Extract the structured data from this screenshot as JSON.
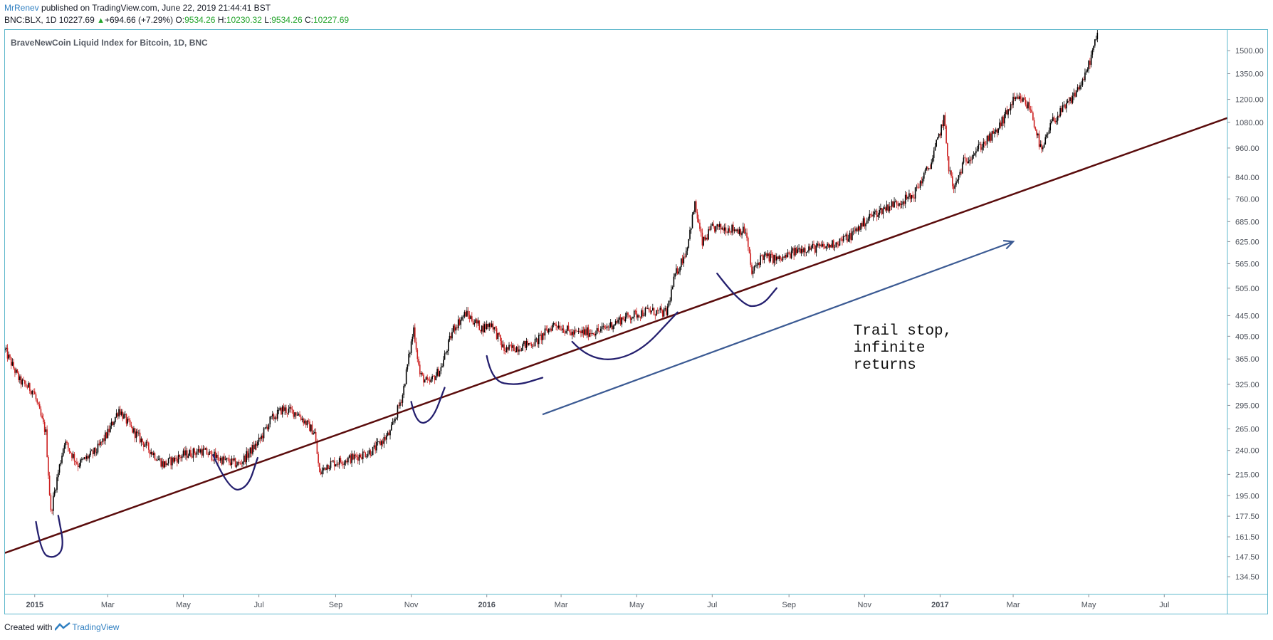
{
  "header": {
    "author": "MrRenev",
    "published_text": " published on TradingView.com, June 22, 2019 21:44:41 BST",
    "symbol": "BNC:BLX, 1D",
    "last_price": "10227.69",
    "change": "+694.66 (+7.29%)",
    "open_label": "O:",
    "open": "9534.26",
    "high_label": "H:",
    "high": "10230.32",
    "low_label": "L:",
    "low": "9534.26",
    "close_label": "C:",
    "close": "10227.69"
  },
  "footer": {
    "created_with": "Created with",
    "brand": "TradingView"
  },
  "colors": {
    "up_candle": "#000000",
    "down_candle": "#cc1f1f",
    "trendline": "#5a0c0c",
    "arrow": "#3b5a93",
    "hand_drawn": "#241f6e",
    "frame": "#5fb8cc"
  },
  "chart_data": {
    "type": "candlestick",
    "title": "BraveNewCoin Liquid Index for Bitcoin, 1D, BNC",
    "y_scale": "log",
    "ylim": [
      124,
      1650
    ],
    "y_ticks": [
      "134.50",
      "147.50",
      "161.50",
      "177.50",
      "195.00",
      "215.00",
      "240.00",
      "265.00",
      "295.00",
      "325.00",
      "365.00",
      "405.00",
      "445.00",
      "505.00",
      "565.00",
      "625.00",
      "685.00",
      "760.00",
      "840.00",
      "960.00",
      "1080.00",
      "1200.00",
      "1350.00",
      "1500.00"
    ],
    "x_ticks": [
      {
        "label": "2015",
        "date": "2015-01-01",
        "bold": true
      },
      {
        "label": "Mar",
        "date": "2015-03-01"
      },
      {
        "label": "May",
        "date": "2015-05-01"
      },
      {
        "label": "Jul",
        "date": "2015-07-01"
      },
      {
        "label": "Sep",
        "date": "2015-09-01"
      },
      {
        "label": "Nov",
        "date": "2015-11-01"
      },
      {
        "label": "2016",
        "date": "2016-01-01",
        "bold": true
      },
      {
        "label": "Mar",
        "date": "2016-03-01"
      },
      {
        "label": "May",
        "date": "2016-05-01"
      },
      {
        "label": "Jul",
        "date": "2016-07-01"
      },
      {
        "label": "Sep",
        "date": "2016-09-01"
      },
      {
        "label": "Nov",
        "date": "2016-11-01"
      },
      {
        "label": "2017",
        "date": "2017-01-01",
        "bold": true
      },
      {
        "label": "Mar",
        "date": "2017-03-01"
      },
      {
        "label": "May",
        "date": "2017-05-01"
      },
      {
        "label": "Jul",
        "date": "2017-07-01"
      }
    ],
    "xlim": [
      "2014-12-08",
      "2017-08-21"
    ],
    "price_path": [
      [
        "2014-12-08",
        380
      ],
      [
        "2014-12-20",
        330
      ],
      [
        "2014-12-31",
        315
      ],
      [
        "2015-01-05",
        285
      ],
      [
        "2015-01-10",
        260
      ],
      [
        "2015-01-14",
        180
      ],
      [
        "2015-01-18",
        205
      ],
      [
        "2015-01-25",
        250
      ],
      [
        "2015-02-05",
        225
      ],
      [
        "2015-02-20",
        240
      ],
      [
        "2015-03-01",
        260
      ],
      [
        "2015-03-10",
        290
      ],
      [
        "2015-03-20",
        265
      ],
      [
        "2015-04-01",
        245
      ],
      [
        "2015-04-15",
        225
      ],
      [
        "2015-05-01",
        235
      ],
      [
        "2015-05-15",
        240
      ],
      [
        "2015-06-01",
        230
      ],
      [
        "2015-06-15",
        225
      ],
      [
        "2015-07-01",
        250
      ],
      [
        "2015-07-10",
        275
      ],
      [
        "2015-07-20",
        290
      ],
      [
        "2015-08-01",
        285
      ],
      [
        "2015-08-15",
        260
      ],
      [
        "2015-08-19",
        215
      ],
      [
        "2015-08-25",
        225
      ],
      [
        "2015-09-15",
        232
      ],
      [
        "2015-10-01",
        240
      ],
      [
        "2015-10-15",
        260
      ],
      [
        "2015-10-25",
        310
      ],
      [
        "2015-11-03",
        420
      ],
      [
        "2015-11-08",
        340
      ],
      [
        "2015-11-15",
        325
      ],
      [
        "2015-11-25",
        350
      ],
      [
        "2015-12-05",
        420
      ],
      [
        "2015-12-15",
        450
      ],
      [
        "2015-12-28",
        420
      ],
      [
        "2016-01-05",
        430
      ],
      [
        "2016-01-15",
        380
      ],
      [
        "2016-01-25",
        385
      ],
      [
        "2016-02-10",
        395
      ],
      [
        "2016-02-25",
        430
      ],
      [
        "2016-03-10",
        410
      ],
      [
        "2016-04-01",
        415
      ],
      [
        "2016-04-20",
        440
      ],
      [
        "2016-05-10",
        455
      ],
      [
        "2016-05-25",
        450
      ],
      [
        "2016-06-01",
        535
      ],
      [
        "2016-06-10",
        600
      ],
      [
        "2016-06-17",
        740
      ],
      [
        "2016-06-23",
        620
      ],
      [
        "2016-07-01",
        665
      ],
      [
        "2016-07-15",
        665
      ],
      [
        "2016-07-28",
        655
      ],
      [
        "2016-08-02",
        540
      ],
      [
        "2016-08-10",
        585
      ],
      [
        "2016-08-25",
        575
      ],
      [
        "2016-09-10",
        605
      ],
      [
        "2016-10-01",
        610
      ],
      [
        "2016-10-20",
        640
      ],
      [
        "2016-11-05",
        700
      ],
      [
        "2016-11-20",
        735
      ],
      [
        "2016-12-10",
        770
      ],
      [
        "2016-12-25",
        900
      ],
      [
        "2017-01-04",
        1100
      ],
      [
        "2017-01-08",
        880
      ],
      [
        "2017-01-12",
        790
      ],
      [
        "2017-01-20",
        900
      ],
      [
        "2017-02-01",
        960
      ],
      [
        "2017-02-15",
        1030
      ],
      [
        "2017-03-01",
        1190
      ],
      [
        "2017-03-08",
        1200
      ],
      [
        "2017-03-15",
        1150
      ],
      [
        "2017-03-24",
        940
      ],
      [
        "2017-04-01",
        1080
      ],
      [
        "2017-04-15",
        1180
      ],
      [
        "2017-04-28",
        1330
      ],
      [
        "2017-05-06",
        1550
      ],
      [
        "2017-05-09",
        1650
      ]
    ],
    "trendline": {
      "start": [
        "2014-12-08",
        150
      ],
      "end": [
        "2017-08-21",
        1102
      ]
    },
    "arrow": {
      "start": [
        "2016-02-15",
        283
      ],
      "end": [
        "2017-03-01",
        625
      ]
    },
    "annotation": {
      "lines": [
        "Trail stop,",
        "infinite",
        "returns"
      ],
      "date": "2016-10-23",
      "price": 408
    },
    "drawn_curves": [
      [
        [
          "2015-01-02",
          173
        ],
        [
          "2015-01-06",
          150
        ],
        [
          "2015-01-16",
          146
        ],
        [
          "2015-01-25",
          153
        ],
        [
          "2015-01-20",
          178
        ]
      ],
      [
        [
          "2015-05-25",
          235
        ],
        [
          "2015-06-07",
          199
        ],
        [
          "2015-06-22",
          202
        ],
        [
          "2015-06-30",
          232
        ]
      ],
      [
        [
          "2015-11-01",
          300
        ],
        [
          "2015-11-05",
          270
        ],
        [
          "2015-11-18",
          275
        ],
        [
          "2015-11-28",
          320
        ]
      ],
      [
        [
          "2016-01-01",
          370
        ],
        [
          "2016-01-05",
          330
        ],
        [
          "2016-01-25",
          323
        ],
        [
          "2016-02-15",
          335
        ]
      ],
      [
        [
          "2016-03-10",
          395
        ],
        [
          "2016-03-25",
          360
        ],
        [
          "2016-05-01",
          370
        ],
        [
          "2016-06-03",
          452
        ]
      ],
      [
        [
          "2016-07-05",
          540
        ],
        [
          "2016-07-25",
          465
        ],
        [
          "2016-08-10",
          465
        ],
        [
          "2016-08-22",
          505
        ]
      ]
    ]
  }
}
